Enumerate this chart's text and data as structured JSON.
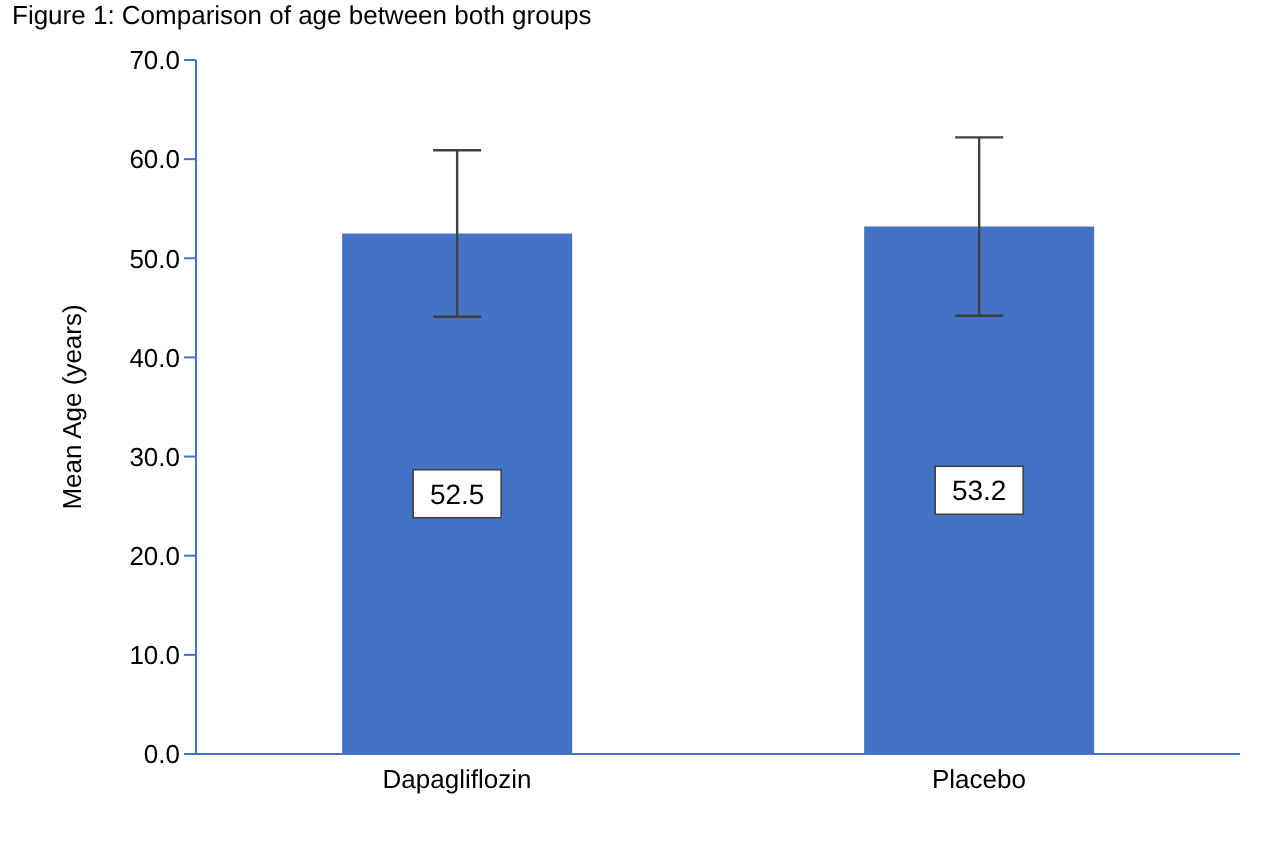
{
  "chart_data": {
    "type": "bar",
    "title": "Figure 1: Comparison of age between both groups",
    "ylabel": "Mean Age (years)",
    "categories": [
      "Dapagliflozin",
      "Placebo"
    ],
    "values": [
      52.5,
      53.2
    ],
    "errors": [
      8.4,
      9.0
    ],
    "color": "#4472c4",
    "data_labels": true,
    "ylim": [
      0,
      70
    ],
    "yticks": [
      {
        "value": 0,
        "label": "0.0"
      },
      {
        "value": 10,
        "label": "10.0"
      },
      {
        "value": 20,
        "label": "20.0"
      },
      {
        "value": 30,
        "label": "30.0"
      },
      {
        "value": 40,
        "label": "40.0"
      },
      {
        "value": 50,
        "label": "50.0"
      },
      {
        "value": 60,
        "label": "60.0"
      },
      {
        "value": 70,
        "label": "70.0"
      }
    ],
    "grid": false
  }
}
